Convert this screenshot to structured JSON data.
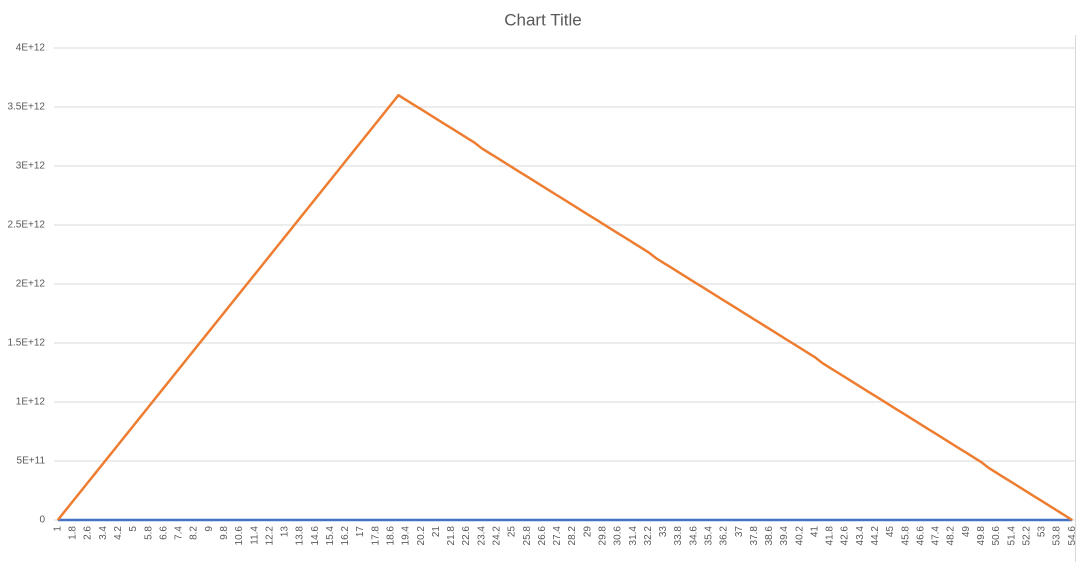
{
  "chart_data": {
    "type": "line",
    "title": "Chart Title",
    "categories": [
      "1",
      null,
      "1.8",
      null,
      "2.6",
      null,
      "3.4",
      null,
      "4.2",
      null,
      "5",
      null,
      "5.8",
      null,
      "6.6",
      null,
      "7.4",
      null,
      "8.2",
      null,
      "9",
      null,
      "9.8",
      null,
      "10.6",
      null,
      "11.4",
      null,
      "12.2",
      null,
      "13",
      null,
      "13.8",
      null,
      "14.6",
      null,
      "15.4",
      null,
      "16.2",
      null,
      "17",
      null,
      "17.8",
      null,
      "18.6",
      null,
      "19.4",
      null,
      "20.2",
      null,
      "21",
      null,
      "21.8",
      null,
      "22.6",
      null,
      "23.4",
      null,
      "24.2",
      null,
      "25",
      null,
      "25.8",
      null,
      "26.6",
      null,
      "27.4",
      null,
      "28.2",
      null,
      "29",
      null,
      "29.8",
      null,
      "30.6",
      null,
      "31.4",
      null,
      "32.2",
      null,
      "33",
      null,
      "33.8",
      null,
      "34.6",
      null,
      "35.4",
      null,
      "36.2",
      null,
      "37",
      null,
      "37.8",
      null,
      "38.6",
      null,
      "39.4",
      null,
      "40.2",
      null,
      "41",
      null,
      "41.8",
      null,
      "42.6",
      null,
      "43.4",
      null,
      "44.2",
      null,
      "45",
      null,
      "45.8",
      null,
      "46.6",
      null,
      "47.4",
      null,
      "48.2",
      null,
      "49",
      null,
      "49.8",
      null,
      "50.6",
      null,
      "51.4",
      null,
      "52.2",
      null,
      "53",
      null,
      "53.8",
      null,
      "54.6"
    ],
    "series": [
      {
        "color": "#4472c4",
        "values": [
          0,
          0,
          0,
          0,
          0,
          0,
          0,
          0,
          0,
          0,
          0,
          0,
          0,
          0,
          0,
          0,
          0,
          0,
          0,
          0,
          0,
          0,
          0,
          0,
          0,
          0,
          0,
          0,
          0,
          0,
          0,
          0,
          0,
          0,
          0,
          0,
          0,
          0,
          0,
          0,
          0,
          0,
          0,
          0,
          0,
          0,
          0,
          0,
          0,
          0,
          0,
          0,
          0,
          0,
          0,
          0,
          0,
          0,
          0,
          0,
          0,
          0,
          0,
          0,
          0,
          0,
          0,
          0,
          0,
          0,
          0,
          0,
          0,
          0,
          0,
          0,
          0,
          0,
          0,
          0,
          0,
          0,
          0,
          0,
          0,
          0,
          0,
          0,
          0,
          0,
          0,
          0,
          0,
          0,
          0,
          0,
          0,
          0,
          0,
          0,
          0,
          0,
          0,
          0,
          0,
          0,
          0,
          0,
          0,
          0,
          0,
          0,
          0,
          0,
          0,
          0,
          0,
          0,
          0,
          0,
          0,
          0,
          0,
          0,
          0,
          0,
          0,
          0,
          0,
          0,
          0,
          0,
          0,
          0,
          0
        ]
      },
      {
        "color": "#ed7d31",
        "values": [
          0,
          80000000000.0,
          160000000000.0,
          240000000000.0,
          320000000000.0,
          400000000000.0,
          480000000000.0,
          560000000000.0,
          640000000000.0,
          720000000000.0,
          800000000000.0,
          880000000000.0,
          960000000000.0,
          1040000000000.0,
          1120000000000.0,
          1200000000000.0,
          1280000000000.0,
          1360000000000.0,
          1440000000000.0,
          1520000000000.0,
          1600000000000.0,
          1680000000000.0,
          1760000000000.0,
          1840000000000.0,
          1920000000000.0,
          2000000000000.0,
          2080000000000.0,
          2160000000000.0,
          2240000000000.0,
          2320000000000.0,
          2400000000000.0,
          2480000000000.0,
          2560000000000.0,
          2640000000000.0,
          2720000000000.0,
          2800000000000.0,
          2880000000000.0,
          2960000000000.0,
          3040000000000.0,
          3120000000000.0,
          3200000000000.0,
          3280000000000.0,
          3360000000000.0,
          3440000000000.0,
          3520000000000.0,
          3600000000000.0,
          3560000000000.0,
          3520000000000.0,
          3480000000000.0,
          3440000000000.0,
          3400000000000.0,
          3360000000000.0,
          3320000000000.0,
          3280000000000.0,
          3240000000000.0,
          3200000000000.0,
          3150000000000.0,
          3110000000000.0,
          3070000000000.0,
          3030000000000.0,
          2990000000000.0,
          2950000000000.0,
          2910000000000.0,
          2870000000000.0,
          2830000000000.0,
          2790000000000.0,
          2750000000000.0,
          2710000000000.0,
          2670000000000.0,
          2630000000000.0,
          2590000000000.0,
          2550000000000.0,
          2510000000000.0,
          2470000000000.0,
          2430000000000.0,
          2390000000000.0,
          2350000000000.0,
          2310000000000.0,
          2270000000000.0,
          2220000000000.0,
          2180000000000.0,
          2140000000000.0,
          2100000000000.0,
          2060000000000.0,
          2020000000000.0,
          1980000000000.0,
          1940000000000.0,
          1900000000000.0,
          1860000000000.0,
          1820000000000.0,
          1780000000000.0,
          1740000000000.0,
          1700000000000.0,
          1660000000000.0,
          1620000000000.0,
          1580000000000.0,
          1540000000000.0,
          1500000000000.0,
          1460000000000.0,
          1420000000000.0,
          1380000000000.0,
          1330000000000.0,
          1290000000000.0,
          1250000000000.0,
          1210000000000.0,
          1170000000000.0,
          1130000000000.0,
          1090000000000.0,
          1050000000000.0,
          1010000000000.0,
          970000000000.0,
          930000000000.0,
          890000000000.0,
          850000000000.0,
          810000000000.0,
          770000000000.0,
          730000000000.0,
          690000000000.0,
          650000000000.0,
          610000000000.0,
          570000000000.0,
          530000000000.0,
          490000000000.0,
          440000000000.0,
          400000000000.0,
          360000000000.0,
          320000000000.0,
          280000000000.0,
          240000000000.0,
          200000000000.0,
          160000000000.0,
          120000000000.0,
          80000000000.0,
          40000000000.0,
          0
        ]
      }
    ],
    "ylim": [
      0,
      4000000000000.0
    ],
    "yticks": [
      0,
      {
        "value": 500000000000.0,
        "label": "5E+11"
      },
      {
        "value": 1000000000000.0,
        "label": "1E+12"
      },
      {
        "value": 1500000000000.0,
        "label": "1.5E+12"
      },
      {
        "value": 2000000000000.0,
        "label": "2E+12"
      },
      {
        "value": 2500000000000.0,
        "label": "2.5E+12"
      },
      {
        "value": 3000000000000.0,
        "label": "3E+12"
      },
      {
        "value": 3500000000000.0,
        "label": "3.5E+12"
      },
      {
        "value": 4000000000000.0,
        "label": "4E+12"
      }
    ],
    "grid": true
  }
}
